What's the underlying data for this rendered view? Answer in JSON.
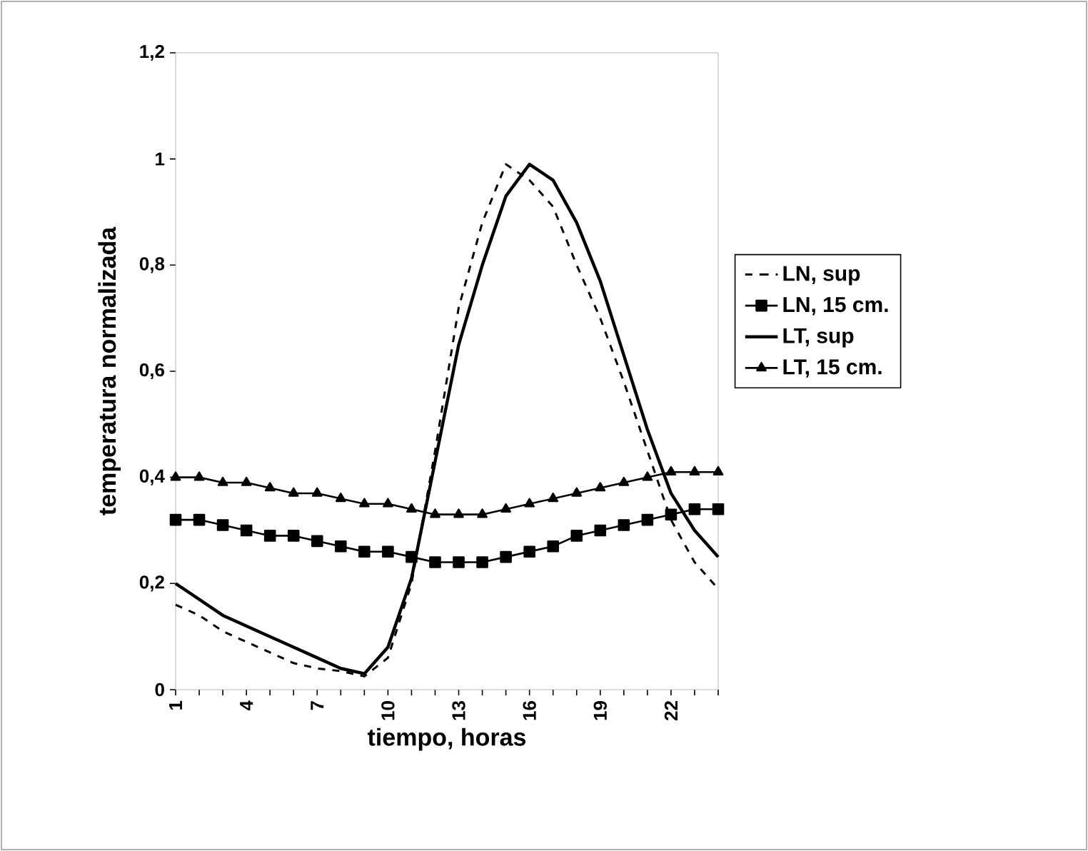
{
  "chart_data": {
    "type": "line",
    "xlabel": "tiempo, horas",
    "ylabel": "temperatura normalizada",
    "categories": [
      "1",
      null,
      null,
      "4",
      null,
      null,
      "7",
      null,
      null,
      "10",
      null,
      null,
      "13",
      null,
      null,
      "16",
      null,
      null,
      "19",
      null,
      null,
      "22",
      null,
      null
    ],
    "ylim": [
      0,
      1.2
    ],
    "yticks": [
      0,
      {
        "value": 0.2,
        "label": "0,2"
      },
      {
        "value": 0.4,
        "label": "0,4"
      },
      {
        "value": 0.6,
        "label": "0,6"
      },
      {
        "value": 0.8,
        "label": "0,8"
      },
      1,
      {
        "value": 1.2,
        "label": "1,2"
      }
    ],
    "grid": false,
    "legend": "right",
    "series": [
      {
        "name": "LN, sup",
        "color": "#000000",
        "line_style": "dashed",
        "marker": "none",
        "values": [
          0.16,
          0.14,
          0.11,
          0.09,
          0.07,
          0.05,
          0.04,
          0.035,
          0.025,
          0.06,
          0.2,
          0.45,
          0.72,
          0.88,
          0.99,
          0.96,
          0.91,
          0.8,
          0.7,
          0.58,
          0.45,
          0.32,
          0.24,
          0.19
        ]
      },
      {
        "name": "LN, 15 cm.",
        "color": "#000000",
        "line_style": "solid",
        "marker": "square",
        "values": [
          0.32,
          0.32,
          0.31,
          0.3,
          0.29,
          0.29,
          0.28,
          0.27,
          0.26,
          0.26,
          0.25,
          0.24,
          0.24,
          0.24,
          0.25,
          0.26,
          0.27,
          0.29,
          0.3,
          0.31,
          0.32,
          0.33,
          0.34,
          0.34
        ]
      },
      {
        "name": "LT, sup",
        "color": "#000000",
        "line_style": "solid",
        "marker": "none",
        "values": [
          0.2,
          0.17,
          0.14,
          0.12,
          0.1,
          0.08,
          0.06,
          0.04,
          0.03,
          0.08,
          0.21,
          0.43,
          0.65,
          0.8,
          0.93,
          0.99,
          0.96,
          0.88,
          0.77,
          0.63,
          0.49,
          0.37,
          0.3,
          0.25
        ]
      },
      {
        "name": "LT, 15 cm.",
        "color": "#000000",
        "line_style": "solid",
        "marker": "triangle",
        "values": [
          0.4,
          0.4,
          0.39,
          0.39,
          0.38,
          0.37,
          0.37,
          0.36,
          0.35,
          0.35,
          0.34,
          0.33,
          0.33,
          0.33,
          0.34,
          0.35,
          0.36,
          0.37,
          0.38,
          0.39,
          0.4,
          0.41,
          0.41,
          0.41
        ]
      }
    ]
  }
}
